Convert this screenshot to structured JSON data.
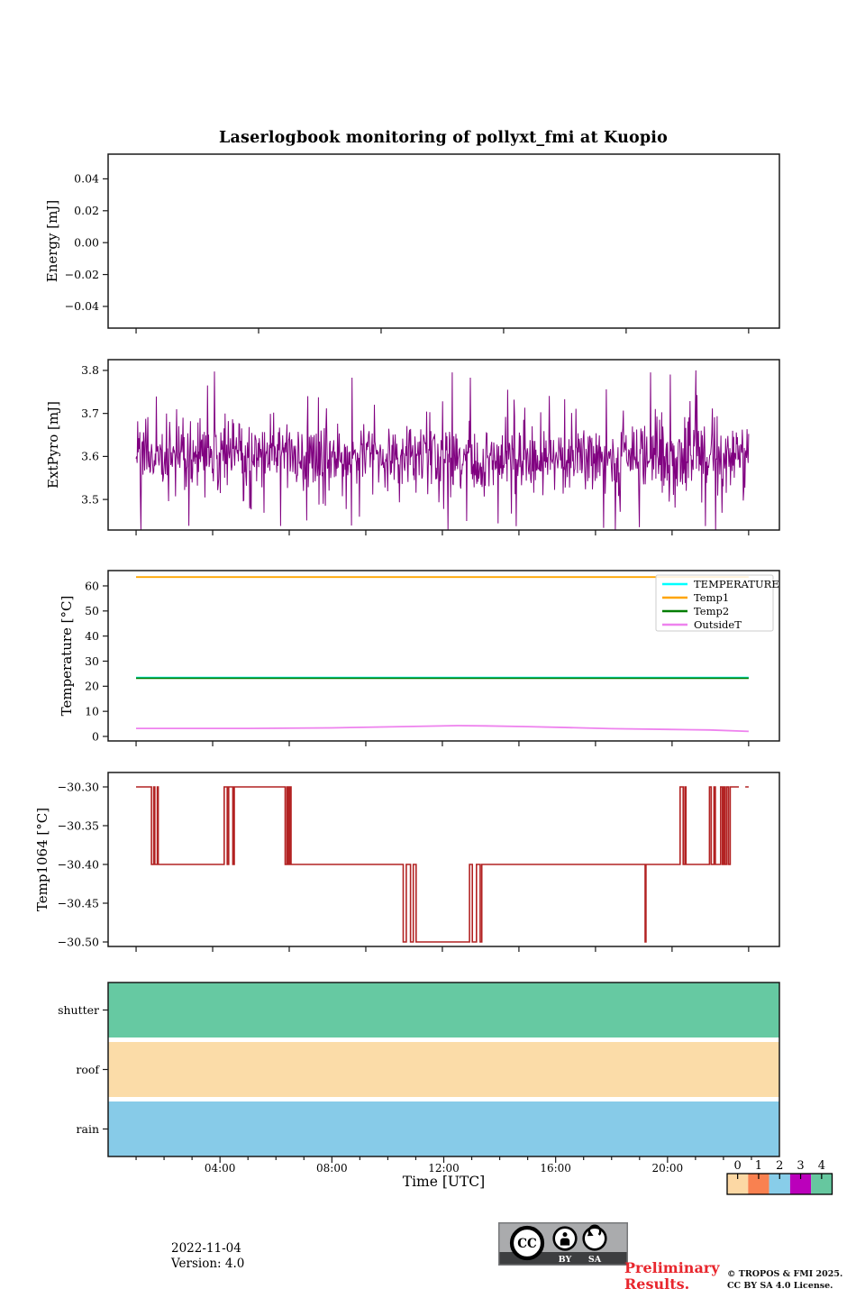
{
  "title": "Laserlogbook monitoring of pollyxt_fmi at Kuopio",
  "xaxis": {
    "label": "Time [UTC]",
    "hours_min": 0,
    "hours_max": 24,
    "major_ticks": [
      {
        "hour": 4,
        "label": "04:00"
      },
      {
        "hour": 8,
        "label": "08:00"
      },
      {
        "hour": 12,
        "label": "12:00"
      },
      {
        "hour": 16,
        "label": "16:00"
      },
      {
        "hour": 20,
        "label": "20:00"
      }
    ]
  },
  "chart_data": [
    {
      "type": "line",
      "name": "energy",
      "ylabel": "Energy [mJ]",
      "yticks": [
        0.04,
        0.02,
        0.0,
        -0.02,
        -0.04
      ],
      "ytick_labels": [
        "0.04",
        "0.02",
        "0.00",
        "−0.02",
        "−0.04"
      ],
      "ylim": [
        -0.0536,
        0.0555
      ],
      "series": []
    },
    {
      "type": "line",
      "name": "extpyro",
      "ylabel": "ExtPyro [mJ]",
      "yticks": [
        3.8,
        3.7,
        3.6,
        3.5
      ],
      "ytick_labels": [
        "3.8",
        "3.7",
        "3.6",
        "3.5"
      ],
      "ylim": [
        3.429,
        3.825
      ],
      "series": [
        {
          "name": "ExtPyro",
          "color": "#800080",
          "kind": "noise",
          "mean": 3.6,
          "std_core": 0.035,
          "std_spike": 0.085,
          "min": 3.43,
          "max": 3.8,
          "t_range": [
            1.0,
            22.9
          ],
          "points": 1150
        }
      ]
    },
    {
      "type": "line",
      "name": "temperature",
      "ylabel": "Temperature [°C]",
      "yticks": [
        60,
        50,
        40,
        30,
        20,
        10,
        0
      ],
      "ytick_labels": [
        "60",
        "50",
        "40",
        "30",
        "20",
        "10",
        "0"
      ],
      "ylim": [
        -1.8,
        66.1
      ],
      "legend": [
        "TEMPERATURE",
        "Temp1",
        "Temp2",
        "OutsideT"
      ],
      "series": [
        {
          "name": "TEMPERATURE",
          "color": "#00ffff",
          "kind": "poly",
          "points": [
            [
              1.0,
              23.45
            ],
            [
              22.9,
              23.45
            ]
          ]
        },
        {
          "name": "Temp1",
          "color": "#ffa500",
          "kind": "poly",
          "points": [
            [
              1.0,
              63.5
            ],
            [
              22.9,
              63.5
            ]
          ]
        },
        {
          "name": "Temp2",
          "color": "#007d00",
          "kind": "poly",
          "points": [
            [
              1.0,
              23.2
            ],
            [
              22.9,
              23.2
            ]
          ]
        },
        {
          "name": "OutsideT",
          "color": "#ee82ee",
          "kind": "poly",
          "points": [
            [
              1.0,
              3.2
            ],
            [
              5.0,
              3.2
            ],
            [
              8.0,
              3.4
            ],
            [
              10.5,
              3.9
            ],
            [
              12.5,
              4.3
            ],
            [
              13.5,
              4.2
            ],
            [
              15.0,
              3.9
            ],
            [
              16.5,
              3.5
            ],
            [
              18.0,
              3.1
            ],
            [
              20.0,
              2.8
            ],
            [
              21.5,
              2.6
            ],
            [
              22.9,
              2.0
            ]
          ]
        }
      ]
    },
    {
      "type": "line",
      "name": "temp1064",
      "ylabel": "Temp1064 [°C]",
      "yticks": [
        -30.3,
        -30.35,
        -30.4,
        -30.45,
        -30.5
      ],
      "ytick_labels": [
        "−30.30",
        "−30.35",
        "−30.40",
        "−30.45",
        "−30.50"
      ],
      "ylim": [
        -30.5058,
        -30.2814
      ],
      "series": [
        {
          "name": "Temp1064",
          "color": "#b22222",
          "kind": "steps",
          "segments": [
            [
              [
                1.0,
                -30.3
              ],
              [
                1.55,
                -30.3
              ],
              [
                1.55,
                -30.4
              ],
              [
                1.63,
                -30.4
              ],
              [
                1.63,
                -30.3
              ],
              [
                1.67,
                -30.3
              ],
              [
                1.67,
                -30.4
              ],
              [
                1.76,
                -30.4
              ],
              [
                1.76,
                -30.3
              ],
              [
                1.79,
                -30.3
              ],
              [
                1.79,
                -30.4
              ],
              [
                4.15,
                -30.4
              ],
              [
                4.15,
                -30.3
              ],
              [
                4.26,
                -30.3
              ],
              [
                4.26,
                -30.4
              ],
              [
                4.31,
                -30.4
              ],
              [
                4.31,
                -30.3
              ],
              [
                4.46,
                -30.3
              ],
              [
                4.46,
                -30.4
              ],
              [
                4.51,
                -30.4
              ],
              [
                4.51,
                -30.3
              ],
              [
                6.33,
                -30.3
              ],
              [
                6.33,
                -30.4
              ],
              [
                6.39,
                -30.4
              ],
              [
                6.39,
                -30.3
              ],
              [
                6.44,
                -30.3
              ],
              [
                6.44,
                -30.4
              ],
              [
                6.49,
                -30.4
              ],
              [
                6.49,
                -30.3
              ],
              [
                6.54,
                -30.3
              ],
              [
                6.54,
                -30.4
              ],
              [
                10.55,
                -30.4
              ],
              [
                10.55,
                -30.5
              ],
              [
                10.66,
                -30.5
              ],
              [
                10.66,
                -30.4
              ],
              [
                10.81,
                -30.4
              ],
              [
                10.81,
                -30.5
              ],
              [
                10.91,
                -30.5
              ],
              [
                10.91,
                -30.4
              ],
              [
                11.01,
                -30.4
              ],
              [
                11.01,
                -30.5
              ],
              [
                12.92,
                -30.5
              ],
              [
                12.92,
                -30.4
              ],
              [
                13.02,
                -30.4
              ],
              [
                13.02,
                -30.5
              ],
              [
                13.17,
                -30.5
              ],
              [
                13.17,
                -30.4
              ],
              [
                13.3,
                -30.4
              ],
              [
                13.3,
                -30.5
              ],
              [
                13.36,
                -30.5
              ],
              [
                13.36,
                -30.4
              ],
              [
                19.2,
                -30.4
              ],
              [
                19.2,
                -30.5
              ],
              [
                19.23,
                -30.5
              ],
              [
                19.23,
                -30.4
              ],
              [
                20.45,
                -30.4
              ],
              [
                20.45,
                -30.3
              ],
              [
                20.56,
                -30.3
              ],
              [
                20.56,
                -30.4
              ],
              [
                20.62,
                -30.4
              ],
              [
                20.62,
                -30.3
              ],
              [
                20.66,
                -30.3
              ],
              [
                20.66,
                -30.4
              ],
              [
                21.5,
                -30.4
              ],
              [
                21.5,
                -30.3
              ],
              [
                21.56,
                -30.3
              ],
              [
                21.56,
                -30.4
              ],
              [
                21.66,
                -30.4
              ],
              [
                21.66,
                -30.3
              ],
              [
                21.71,
                -30.3
              ],
              [
                21.71,
                -30.4
              ],
              [
                21.9,
                -30.4
              ],
              [
                21.9,
                -30.3
              ],
              [
                21.96,
                -30.3
              ],
              [
                21.96,
                -30.4
              ],
              [
                22.01,
                -30.4
              ],
              [
                22.01,
                -30.3
              ],
              [
                22.06,
                -30.3
              ],
              [
                22.06,
                -30.4
              ],
              [
                22.12,
                -30.4
              ],
              [
                22.12,
                -30.3
              ],
              [
                22.18,
                -30.3
              ],
              [
                22.18,
                -30.4
              ],
              [
                22.24,
                -30.4
              ],
              [
                22.24,
                -30.3
              ],
              [
                22.55,
                -30.3
              ]
            ],
            [
              [
                22.78,
                -30.3
              ],
              [
                22.9,
                -30.3
              ]
            ]
          ]
        }
      ]
    },
    {
      "type": "status-bars",
      "name": "status",
      "rows": [
        {
          "label": "shutter",
          "color": "#66c9a2",
          "t_range": [
            0,
            24
          ]
        },
        {
          "label": "roof",
          "color": "#fbdca8",
          "t_range": [
            0,
            24
          ]
        },
        {
          "label": "rain",
          "color": "#87cbe8",
          "t_range": [
            0,
            24
          ]
        }
      ]
    }
  ],
  "colorbar": {
    "labels": [
      "0",
      "1",
      "2",
      "3",
      "4"
    ],
    "colors": [
      "#fcd8a4",
      "#f98150",
      "#88cde9",
      "#bb00bb",
      "#66c79f"
    ]
  },
  "footer": {
    "date": "2022-11-04",
    "version": "Version: 4.0",
    "preliminary": [
      "Preliminary",
      "Results."
    ],
    "copyright": [
      "© TROPOS & FMI 2025.",
      "CC BY SA 4.0 License."
    ],
    "cc_badge": {
      "cc": "CC",
      "by": "BY",
      "sa": "SA"
    }
  }
}
